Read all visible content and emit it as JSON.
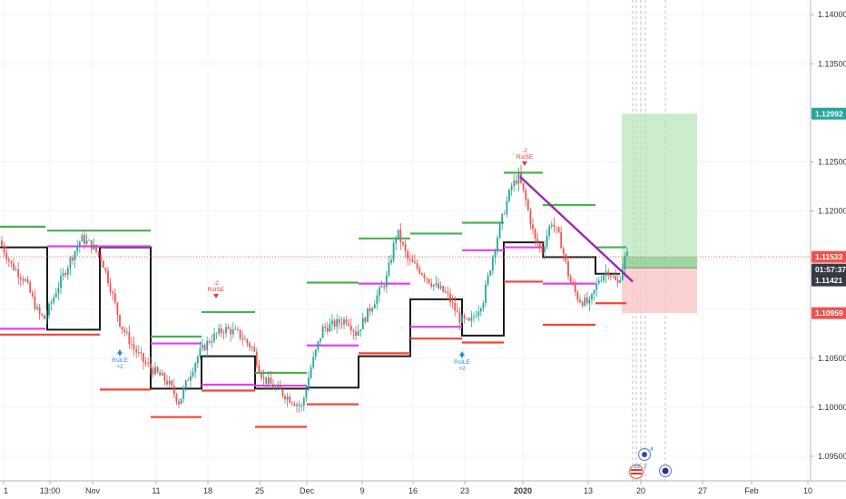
{
  "chart_data": {
    "type": "candlestick",
    "instrument": "",
    "y_axis": {
      "ticks": [
        "1.14000",
        "1.13500",
        "1.12500",
        "1.12000",
        "1.11500",
        "1.10500",
        "1.10000",
        "1.09500"
      ],
      "tick_values": [
        1.14,
        1.135,
        1.125,
        1.12,
        1.115,
        1.105,
        1.1,
        1.095
      ],
      "range": [
        1.0925,
        1.1415
      ]
    },
    "x_axis": {
      "ticks": [
        "1",
        "13:00",
        "Nov",
        "11",
        "18",
        "25",
        "Dec",
        "9",
        "16",
        "23",
        "2020",
        "13",
        "20",
        "27",
        "Feb",
        "10"
      ],
      "bold_ticks": [
        "2020"
      ]
    },
    "price_tags": [
      {
        "label": "1.12992",
        "value": 1.12992,
        "color": "#26a69a",
        "role": "target"
      },
      {
        "label": "1.11533",
        "value": 1.11533,
        "color": "#ef5350",
        "role": "last-price"
      },
      {
        "label": "01:57:37",
        "value": 1.11475,
        "color": "#363a45",
        "role": "countdown"
      },
      {
        "label": "1.11421",
        "value": 1.11421,
        "color": "#363a45",
        "role": "entry"
      },
      {
        "label": "1.10959",
        "value": 1.10959,
        "color": "#ef5350",
        "role": "stop"
      }
    ],
    "annotations": [
      {
        "lines": [
          "-2",
          "RsISE"
        ],
        "color": "#e53935",
        "anchor": "2019-11-18"
      },
      {
        "lines": [
          "RsILE",
          "+2"
        ],
        "color": "#1e88e5",
        "anchor": "2019-11-06"
      },
      {
        "lines": [
          "RsILE",
          "+2"
        ],
        "color": "#1e88e5",
        "anchor": "2019-12-23"
      },
      {
        "lines": [
          "-2",
          "RsISE"
        ],
        "color": "#e53935",
        "anchor": "2019-12-31"
      }
    ],
    "event_badges": [
      "4",
      "12",
      "2"
    ],
    "colors": {
      "bull": "#26a69a",
      "bear": "#ef5350",
      "trendline": "#9c27b0",
      "pivot_high": "#4caf50",
      "pivot_low": "#f44336",
      "pivot_mid": "#e040fb",
      "box": "#1a1a1a",
      "profit_zone": "#b7e4b9",
      "loss_zone": "#f8c3c3"
    }
  }
}
